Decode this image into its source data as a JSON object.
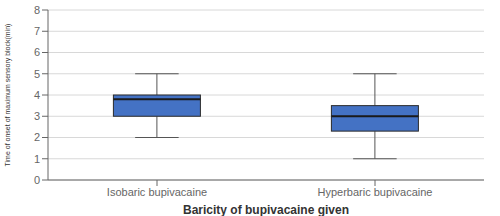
{
  "chart_data": {
    "type": "box",
    "categories": [
      "Isobaric bupivacaine",
      "Hyperbaric bupivacaine"
    ],
    "boxes": [
      {
        "whislo": 2.0,
        "q1": 3.0,
        "med": 3.8,
        "q3": 4.0,
        "whishi": 5.0
      },
      {
        "whislo": 1.0,
        "q1": 2.3,
        "med": 3.0,
        "q3": 3.5,
        "whishi": 5.0
      }
    ],
    "color": "#4472C4",
    "xlabel": "Baricity of bupivacaine given",
    "ylabel": "Time of onset of maximum sensory block(min)",
    "ylim": [
      0,
      8
    ],
    "yticks": [
      0,
      1,
      2,
      3,
      4,
      5,
      6,
      7,
      8
    ],
    "grid": true
  }
}
